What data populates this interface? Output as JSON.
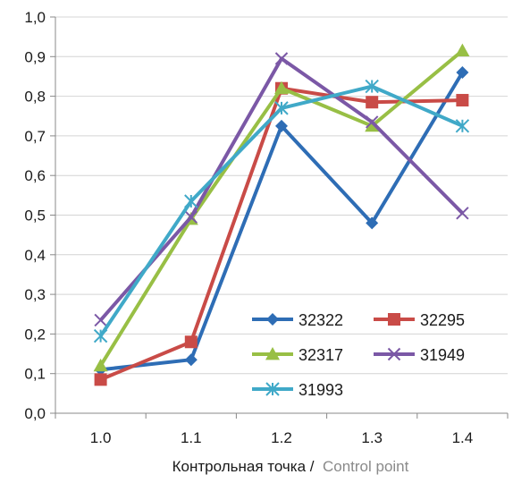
{
  "chart_data": {
    "type": "line",
    "categories": [
      "1.0",
      "1.1",
      "1.2",
      "1.3",
      "1.4"
    ],
    "ylim": [
      0,
      1.0
    ],
    "yticks": [
      "0,0",
      "0,1",
      "0,2",
      "0,3",
      "0,4",
      "0,5",
      "0,6",
      "0,7",
      "0,8",
      "0,9",
      "1,0"
    ],
    "xlabel_ru": "Контрольная точка /",
    "xlabel_en": "Control point",
    "grid": "horizontal",
    "legend_position": "bottom-right",
    "series": [
      {
        "name": "32322",
        "color": "#2e6db5",
        "marker": "diamond",
        "values": [
          0.11,
          0.135,
          0.725,
          0.48,
          0.86
        ]
      },
      {
        "name": "32295",
        "color": "#c94b47",
        "marker": "square",
        "values": [
          0.085,
          0.18,
          0.82,
          0.785,
          0.79
        ]
      },
      {
        "name": "32317",
        "color": "#98bf45",
        "marker": "triangle",
        "values": [
          0.12,
          0.49,
          0.82,
          0.725,
          0.915
        ]
      },
      {
        "name": "31949",
        "color": "#7b58a6",
        "marker": "x",
        "values": [
          0.235,
          0.495,
          0.895,
          0.735,
          0.505
        ]
      },
      {
        "name": "31993",
        "color": "#40a9c8",
        "marker": "star",
        "values": [
          0.195,
          0.535,
          0.77,
          0.825,
          0.725
        ]
      }
    ]
  }
}
